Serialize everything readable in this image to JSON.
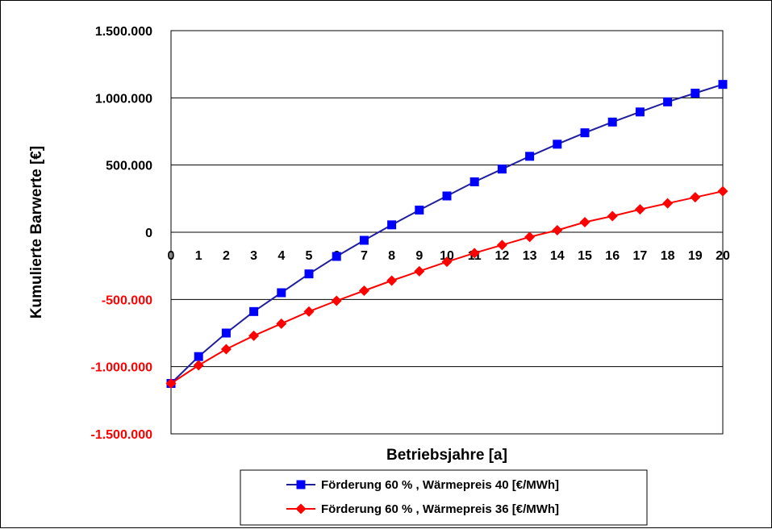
{
  "chart_data": {
    "type": "line",
    "xlabel": "Betriebsjahre [a]",
    "ylabel": "Kumulierte Barwerte [€]",
    "ylim": [
      -1500000,
      1500000
    ],
    "y_ticks": [
      {
        "value": 1500000,
        "label": "1.500.000",
        "color": "#000000"
      },
      {
        "value": 1000000,
        "label": "1.000.000",
        "color": "#000000"
      },
      {
        "value": 500000,
        "label": "500.000",
        "color": "#000000"
      },
      {
        "value": 0,
        "label": "0",
        "color": "#000000"
      },
      {
        "value": -500000,
        "label": "-500.000",
        "color": "#ff0000"
      },
      {
        "value": -1000000,
        "label": "-1.000.000",
        "color": "#ff0000"
      },
      {
        "value": -1500000,
        "label": "-1.500.000",
        "color": "#ff0000"
      }
    ],
    "x": [
      0,
      1,
      2,
      3,
      4,
      5,
      6,
      7,
      8,
      9,
      10,
      11,
      12,
      13,
      14,
      15,
      16,
      17,
      18,
      19,
      20
    ],
    "x_tick_labels": [
      "0",
      "1",
      "2",
      "3",
      "4",
      "5",
      "6",
      "7",
      "8",
      "9",
      "10",
      "11",
      "12",
      "13",
      "14",
      "15",
      "16",
      "17",
      "18",
      "19",
      "20"
    ],
    "grid": "horizontal",
    "legend_position": "bottom",
    "series": [
      {
        "name": "Förderung 60 % , Wärmepreis 40 [€/MWh]",
        "color": "#1f1f9e",
        "marker_color": "#0000ff",
        "marker": "square",
        "values": [
          -1125000,
          -925000,
          -750000,
          -590000,
          -450000,
          -310000,
          -180000,
          -60000,
          55000,
          165000,
          270000,
          375000,
          470000,
          565000,
          655000,
          740000,
          820000,
          895000,
          970000,
          1035000,
          1100000
        ]
      },
      {
        "name": "Förderung 60 % , Wärmepreis 36 [€/MWh]",
        "color": "#ff0000",
        "marker_color": "#ff0000",
        "marker": "diamond",
        "values": [
          -1125000,
          -990000,
          -870000,
          -770000,
          -680000,
          -590000,
          -510000,
          -435000,
          -360000,
          -290000,
          -220000,
          -155000,
          -95000,
          -35000,
          15000,
          75000,
          120000,
          170000,
          215000,
          260000,
          305000
        ]
      }
    ]
  }
}
